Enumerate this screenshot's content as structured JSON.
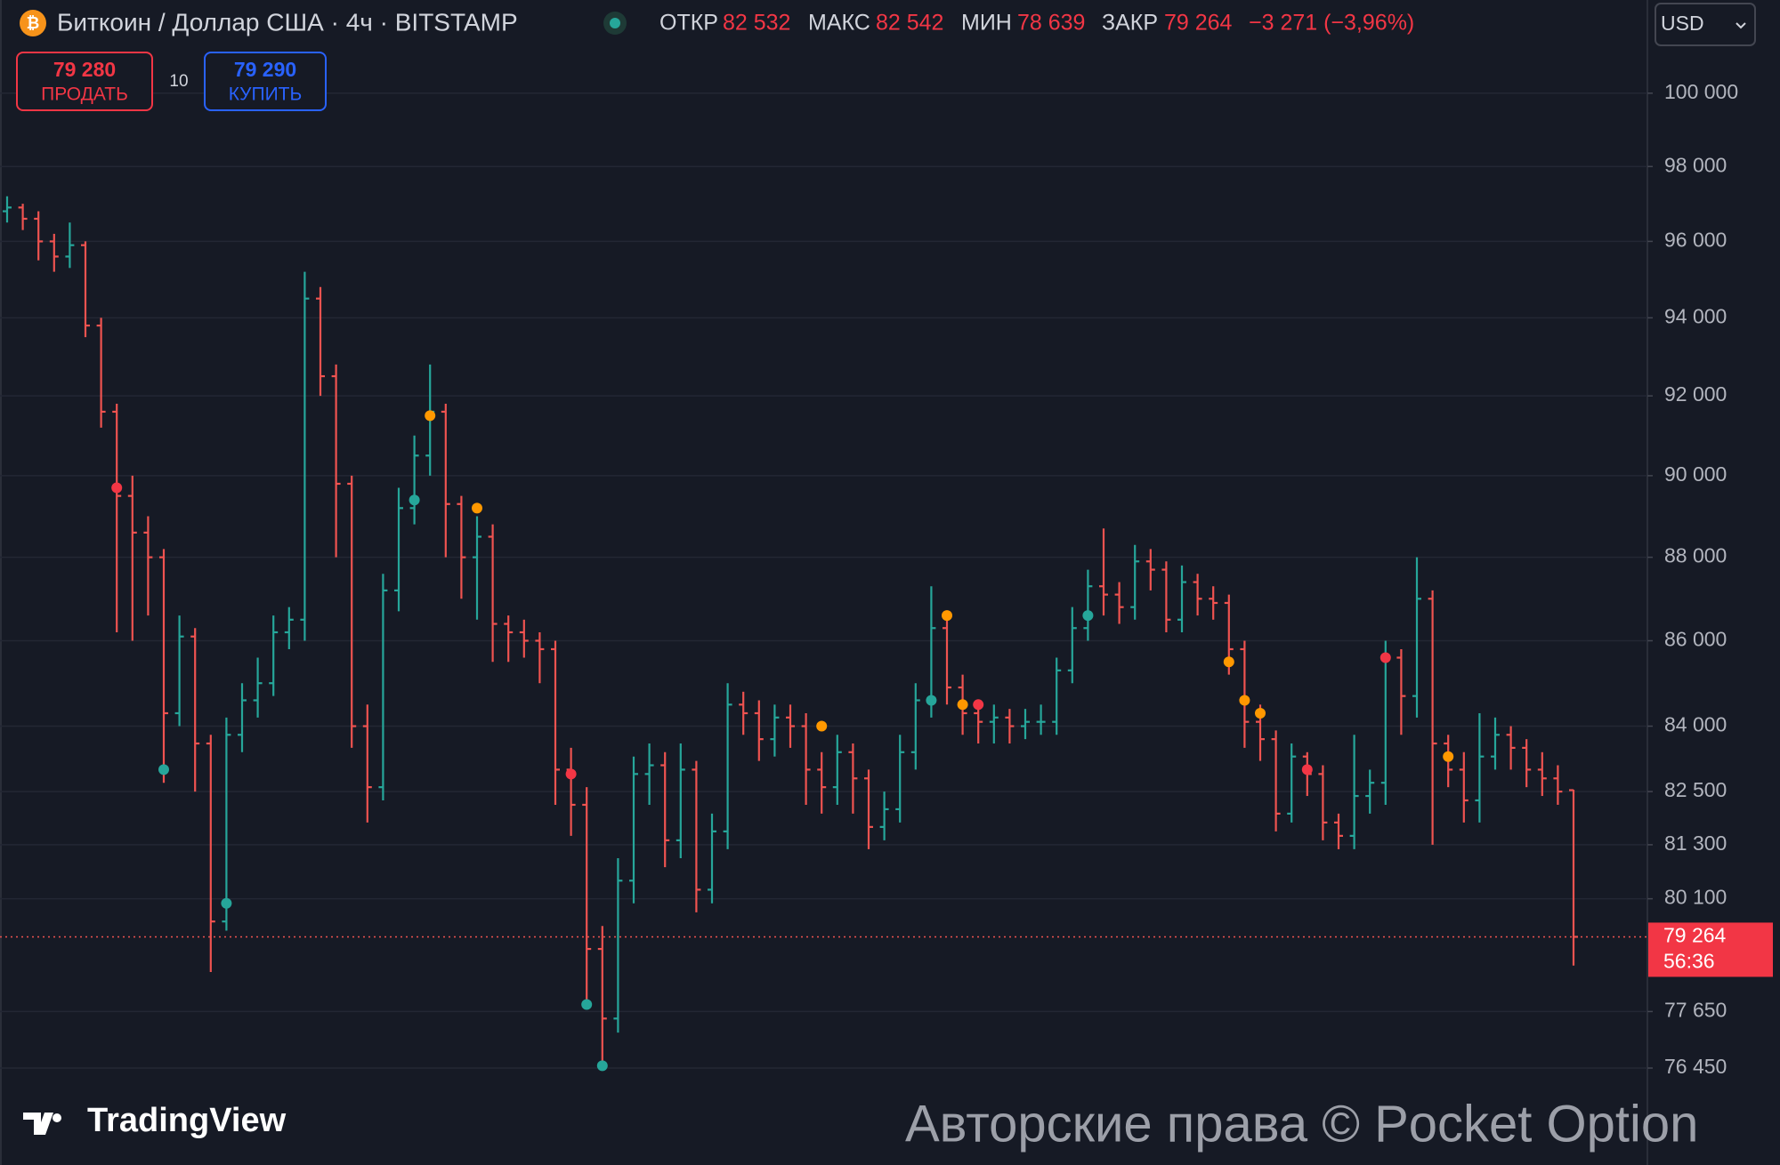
{
  "header": {
    "title": "Биткоин / Доллар США · 4ч · BITSTAMP",
    "open_label": "ОТКР",
    "open": "82 532",
    "high_label": "МАКС",
    "high": "82 542",
    "low_label": "МИН",
    "low": "78 639",
    "close_label": "ЗАКР",
    "close": "79 264",
    "change": "−3 271 (−3,96%)"
  },
  "trade": {
    "sell_price": "79 280",
    "sell_label": "ПРОДАТЬ",
    "quantity": "10",
    "buy_price": "79 290",
    "buy_label": "КУПИТЬ"
  },
  "currency": "USD",
  "logo": "TradingView",
  "watermark": "Авторские права © Pocket Option",
  "chart_data": {
    "type": "ohlc",
    "log_scale": true,
    "grid": true,
    "up_color": "#26a69a",
    "down_color": "#ef5350",
    "ylim": [
      74600,
      102600
    ],
    "yticks": [
      {
        "value": 100000,
        "label": "100 000"
      },
      {
        "value": 98000,
        "label": "98 000"
      },
      {
        "value": 96000,
        "label": "96 000"
      },
      {
        "value": 94000,
        "label": "94 000"
      },
      {
        "value": 92000,
        "label": "92 000"
      },
      {
        "value": 90000,
        "label": "90 000"
      },
      {
        "value": 88000,
        "label": "88 000"
      },
      {
        "value": 86000,
        "label": "86 000"
      },
      {
        "value": 84000,
        "label": "84 000"
      },
      {
        "value": 82500,
        "label": "82 500"
      },
      {
        "value": 81300,
        "label": "81 300"
      },
      {
        "value": 80100,
        "label": "80 100"
      },
      {
        "value": 77650,
        "label": "77 650"
      },
      {
        "value": 76450,
        "label": "76 450"
      }
    ],
    "open": [
      96800,
      96900,
      96600,
      96000,
      95600,
      95900,
      93800,
      91600,
      89500,
      88600,
      88000,
      84300,
      86100,
      83600,
      79600,
      83800,
      84600,
      85000,
      86200,
      86500,
      94500,
      92500,
      89800,
      84000,
      82600,
      87200,
      89200,
      90500,
      91600,
      89300,
      88000,
      88500,
      86400,
      86200,
      86000,
      85800,
      83000,
      82200,
      79000,
      77500,
      80500,
      82900,
      83100,
      81400,
      83000,
      80300,
      81600,
      84500,
      84300,
      83700,
      84200,
      84000,
      83000,
      82600,
      83400,
      82800,
      81700,
      82100,
      83400,
      84600,
      86300,
      84900,
      84300,
      84100,
      84200,
      84000,
      84100,
      84100,
      85300,
      86300,
      87300,
      87100,
      86800,
      87900,
      87700,
      86500,
      87400,
      87000,
      86900,
      85800,
      84100,
      83700,
      82000,
      83300,
      82900,
      81800,
      81500,
      82400,
      82700,
      85600,
      84700,
      87000,
      83600,
      83000,
      82300,
      83300,
      83800,
      83500,
      83000,
      82800,
      82532
    ],
    "high": [
      97200,
      97000,
      96800,
      96200,
      96500,
      96000,
      94000,
      91800,
      90000,
      89000,
      88200,
      86600,
      86300,
      83800,
      84200,
      85000,
      85600,
      86600,
      86800,
      95200,
      94800,
      92800,
      90000,
      84500,
      87600,
      89700,
      91000,
      92800,
      91800,
      89500,
      89000,
      88800,
      86600,
      86500,
      86200,
      86000,
      83500,
      82600,
      79500,
      81000,
      83300,
      83600,
      83400,
      83600,
      83200,
      82000,
      85000,
      84800,
      84600,
      84500,
      84500,
      84300,
      83400,
      83800,
      83600,
      83000,
      82500,
      83800,
      85000,
      87300,
      86600,
      85200,
      84600,
      84500,
      84400,
      84400,
      84500,
      85600,
      86800,
      87700,
      88700,
      87400,
      88300,
      88200,
      87900,
      87800,
      87600,
      87300,
      87100,
      86000,
      84500,
      83900,
      83600,
      83400,
      83100,
      82000,
      83800,
      83000,
      86000,
      85800,
      88000,
      87200,
      83800,
      83400,
      84300,
      84200,
      84000,
      83700,
      83400,
      83100,
      82542
    ],
    "low": [
      96500,
      96300,
      95500,
      95200,
      95300,
      93500,
      91200,
      86200,
      86000,
      86600,
      82700,
      84000,
      82500,
      78500,
      79400,
      83400,
      84200,
      84700,
      85800,
      86000,
      92000,
      88000,
      83500,
      81800,
      82300,
      86700,
      88800,
      90000,
      88000,
      87000,
      86500,
      85500,
      85500,
      85600,
      85000,
      82200,
      81500,
      77800,
      76500,
      77200,
      80000,
      82200,
      80800,
      81000,
      79800,
      80000,
      81200,
      83800,
      83200,
      83300,
      83500,
      82200,
      82000,
      82200,
      82000,
      81200,
      81400,
      81800,
      83000,
      84200,
      84500,
      83800,
      83600,
      83600,
      83600,
      83700,
      83800,
      83800,
      85000,
      86000,
      86600,
      86400,
      86500,
      87200,
      86200,
      86200,
      86600,
      86500,
      85200,
      83500,
      83200,
      81600,
      81800,
      82400,
      81400,
      81200,
      81200,
      82000,
      82200,
      83800,
      84200,
      81300,
      82600,
      81800,
      81800,
      83000,
      83000,
      82600,
      82400,
      82200,
      78639
    ],
    "close": [
      96900,
      96600,
      96000,
      95600,
      95900,
      93800,
      91600,
      89500,
      88600,
      88000,
      84300,
      86100,
      83600,
      79600,
      83800,
      84600,
      85000,
      86200,
      86500,
      94500,
      92500,
      89800,
      84000,
      82600,
      87200,
      89200,
      90500,
      91600,
      89300,
      88000,
      88500,
      86400,
      86200,
      86000,
      85800,
      83000,
      82200,
      79000,
      77500,
      80500,
      82900,
      83100,
      81400,
      83000,
      80300,
      81600,
      84500,
      84300,
      83700,
      84200,
      84000,
      83000,
      82600,
      83400,
      82800,
      81700,
      82100,
      83400,
      84600,
      86300,
      84900,
      84300,
      84100,
      84200,
      84000,
      84100,
      84100,
      85300,
      86300,
      87300,
      87100,
      86800,
      87900,
      87700,
      86500,
      87400,
      87000,
      86900,
      85800,
      84100,
      83700,
      82000,
      83300,
      82900,
      81800,
      81500,
      82400,
      82700,
      85600,
      84700,
      87000,
      83600,
      83000,
      82300,
      83300,
      83800,
      83500,
      83000,
      82800,
      82500,
      79264
    ],
    "markers": [
      {
        "bar": 7,
        "price": 89700,
        "color": "#f23645"
      },
      {
        "bar": 10,
        "price": 83000,
        "color": "#26a69a"
      },
      {
        "bar": 14,
        "price": 80000,
        "color": "#26a69a"
      },
      {
        "bar": 26,
        "price": 89400,
        "color": "#26a69a"
      },
      {
        "bar": 27,
        "price": 91500,
        "color": "#ff9800"
      },
      {
        "bar": 30,
        "price": 89200,
        "color": "#ff9800"
      },
      {
        "bar": 36,
        "price": 82900,
        "color": "#f23645"
      },
      {
        "bar": 37,
        "price": 77800,
        "color": "#26a69a"
      },
      {
        "bar": 38,
        "price": 76500,
        "color": "#26a69a"
      },
      {
        "bar": 52,
        "price": 84000,
        "color": "#ff9800"
      },
      {
        "bar": 59,
        "price": 84600,
        "color": "#26a69a"
      },
      {
        "bar": 60,
        "price": 86600,
        "color": "#ff9800"
      },
      {
        "bar": 61,
        "price": 84500,
        "color": "#ff9800"
      },
      {
        "bar": 62,
        "price": 84500,
        "color": "#f23645"
      },
      {
        "bar": 69,
        "price": 86600,
        "color": "#26a69a"
      },
      {
        "bar": 78,
        "price": 85500,
        "color": "#ff9800"
      },
      {
        "bar": 79,
        "price": 84600,
        "color": "#ff9800"
      },
      {
        "bar": 80,
        "price": 84300,
        "color": "#ff9800"
      },
      {
        "bar": 83,
        "price": 83000,
        "color": "#f23645"
      },
      {
        "bar": 88,
        "price": 85600,
        "color": "#f23645"
      },
      {
        "bar": 92,
        "price": 83300,
        "color": "#ff9800"
      }
    ],
    "last_price_label": "79 264",
    "countdown": "56:36"
  }
}
